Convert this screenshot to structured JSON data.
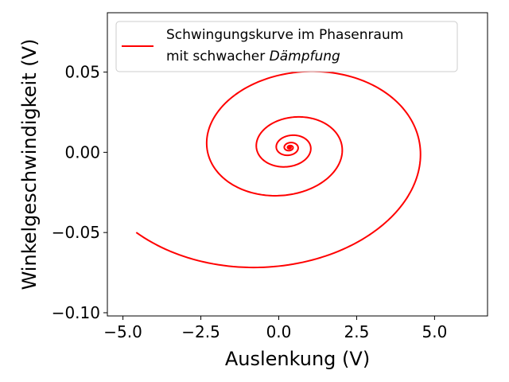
{
  "chart_data": {
    "type": "line",
    "title": "",
    "xlabel": "Auslenkung (V)",
    "ylabel": "Winkelgeschwindigkeit (V)",
    "xlim": [
      -5.5,
      6.7
    ],
    "ylim": [
      -0.102,
      0.087
    ],
    "x_ticks": [
      -5.0,
      -2.5,
      0.0,
      2.5,
      5.0
    ],
    "x_tick_labels": [
      "−5.0",
      "−2.5",
      "0.0",
      "2.5",
      "5.0"
    ],
    "y_ticks": [
      -0.1,
      -0.05,
      0.0,
      0.05
    ],
    "y_tick_labels": [
      "−0.10",
      "−0.05",
      "0.00",
      "0.05"
    ],
    "grid": false,
    "legend_position": "upper-left",
    "series": [
      {
        "name_line1": "Schwingungskurve im Phasenraum",
        "name_line2_plain": "mit schwacher ",
        "name_line2_italic": "Dämpfung",
        "color": "#ff0000",
        "model": {
          "description": "damped spiral in phase space",
          "cx": 0.35,
          "cy": 0.003,
          "ax": 6.0,
          "ay": 0.084,
          "tilt": 0.006,
          "decay": 0.145,
          "theta_start": 3.75,
          "theta_end": 45.5,
          "samples": 1400
        }
      }
    ]
  }
}
